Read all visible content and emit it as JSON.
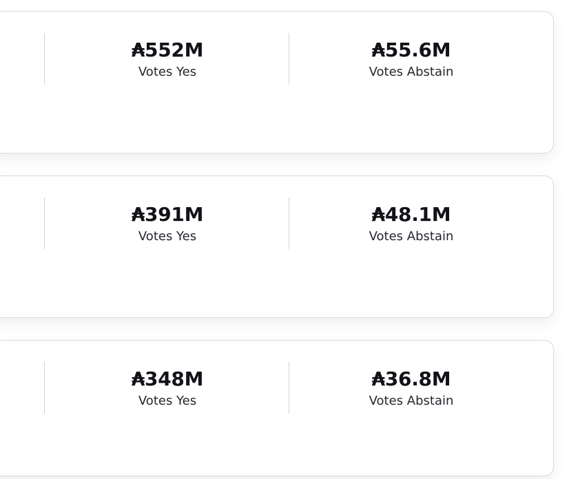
{
  "proposals": [
    {
      "votes_yes": {
        "amount": "₳552M",
        "label": "Votes Yes"
      },
      "votes_abstain": {
        "amount": "₳55.6M",
        "label": "Votes Abstain"
      }
    },
    {
      "votes_yes": {
        "amount": "₳391M",
        "label": "Votes Yes"
      },
      "votes_abstain": {
        "amount": "₳48.1M",
        "label": "Votes Abstain"
      }
    },
    {
      "votes_yes": {
        "amount": "₳348M",
        "label": "Votes Yes"
      },
      "votes_abstain": {
        "amount": "₳36.8M",
        "label": "Votes Abstain"
      }
    }
  ]
}
